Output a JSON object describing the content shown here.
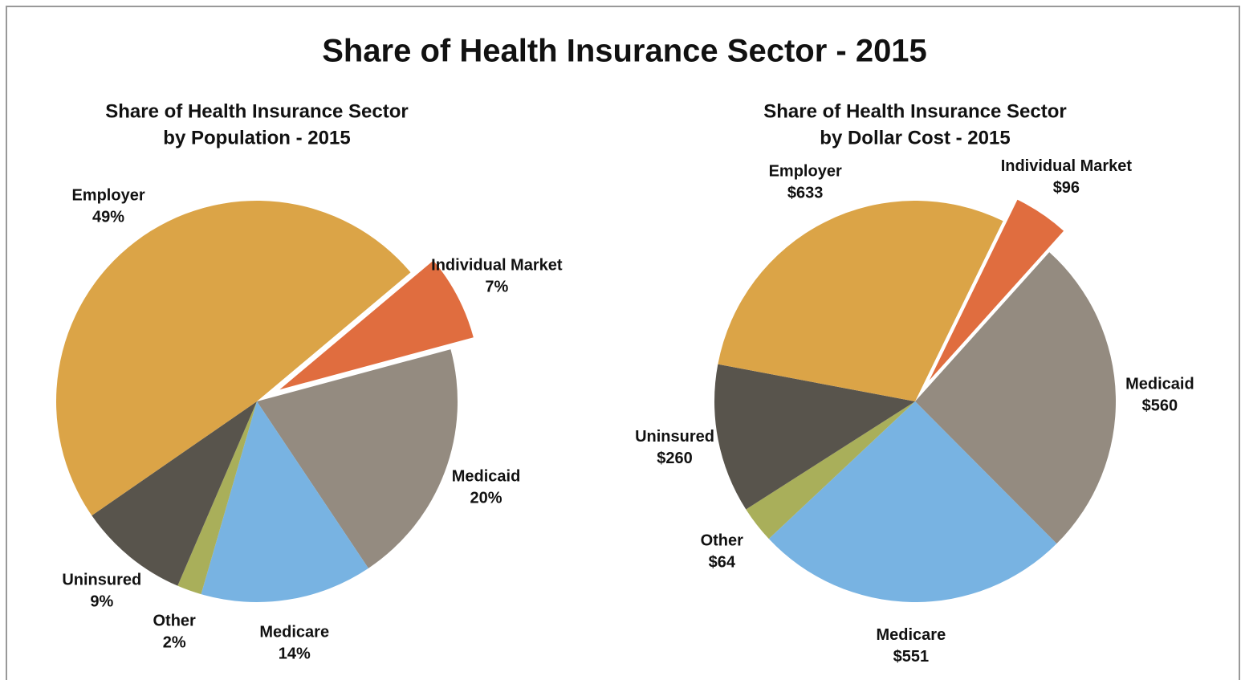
{
  "title": "Share of Health Insurance Sector - 2015",
  "chart_data": [
    {
      "type": "pie",
      "title": [
        "Share of Health Insurance Sector",
        "by Population - 2015"
      ],
      "categories": [
        "Individual Market",
        "Medicaid",
        "Medicare",
        "Other",
        "Uninsured",
        "Employer"
      ],
      "values": [
        7,
        20,
        14,
        2,
        9,
        49
      ],
      "value_labels": [
        "7%",
        "20%",
        "14%",
        "2%",
        "9%",
        "49%"
      ],
      "colors": [
        "#e06d3f",
        "#948b80",
        "#78b3e2",
        "#a9af5a",
        "#58544c",
        "#dba447"
      ],
      "exploded": "Individual Market"
    },
    {
      "type": "pie",
      "title": [
        "Share of Health Insurance Sector",
        "by Dollar Cost - 2015"
      ],
      "categories": [
        "Individual Market",
        "Medicaid",
        "Medicare",
        "Other",
        "Uninsured",
        "Employer"
      ],
      "values": [
        96,
        560,
        551,
        64,
        260,
        633
      ],
      "value_labels": [
        "$96",
        "$560",
        "$551",
        "$64",
        "$260",
        "$633"
      ],
      "colors": [
        "#e06d3f",
        "#948b80",
        "#78b3e2",
        "#a9af5a",
        "#58544c",
        "#dba447"
      ],
      "exploded": "Individual Market"
    }
  ]
}
